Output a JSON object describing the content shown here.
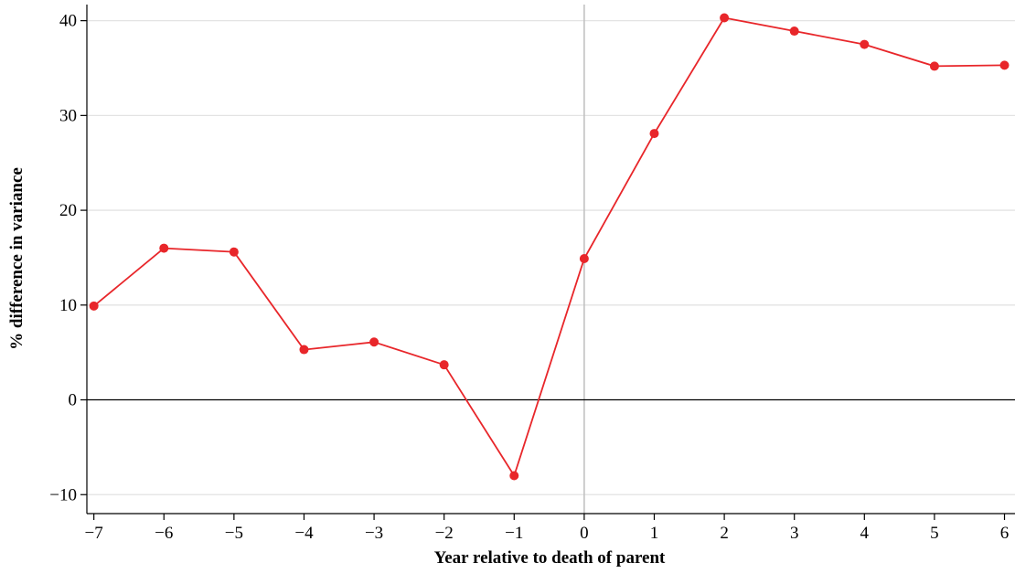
{
  "chart_data": {
    "type": "line",
    "title": "",
    "xlabel": "Year relative to death of parent",
    "ylabel": "% difference in variance",
    "x": [
      -7,
      -6,
      -5,
      -4,
      -3,
      -2,
      -1,
      0,
      1,
      2,
      3,
      4,
      5,
      6
    ],
    "xticks": [
      "−7",
      "−6",
      "−5",
      "−4",
      "−3",
      "−2",
      "−1",
      "0",
      "1",
      "2",
      "3",
      "4",
      "5",
      "6"
    ],
    "yticks": [
      -10,
      0,
      10,
      20,
      30,
      40
    ],
    "ytick_labels": [
      "−10",
      "0",
      "10",
      "20",
      "30",
      "40"
    ],
    "xlim": [
      -7.1,
      6.15
    ],
    "ylim": [
      -12.0,
      41.7
    ],
    "grid": true,
    "reference_lines": {
      "horizontal_at": 0,
      "vertical_at": 0
    },
    "series": [
      {
        "values": [
          9.9,
          16.0,
          15.6,
          5.3,
          6.1,
          3.7,
          -8.0,
          14.9,
          28.1,
          40.3,
          38.9,
          37.5,
          35.2,
          35.3
        ],
        "color": "#e8262a"
      }
    ],
    "colors": {
      "gridline": "#e3e3e3",
      "zero_line": "#000000",
      "vertical_reference": "#c2c2c2",
      "axis": "#000000"
    }
  }
}
